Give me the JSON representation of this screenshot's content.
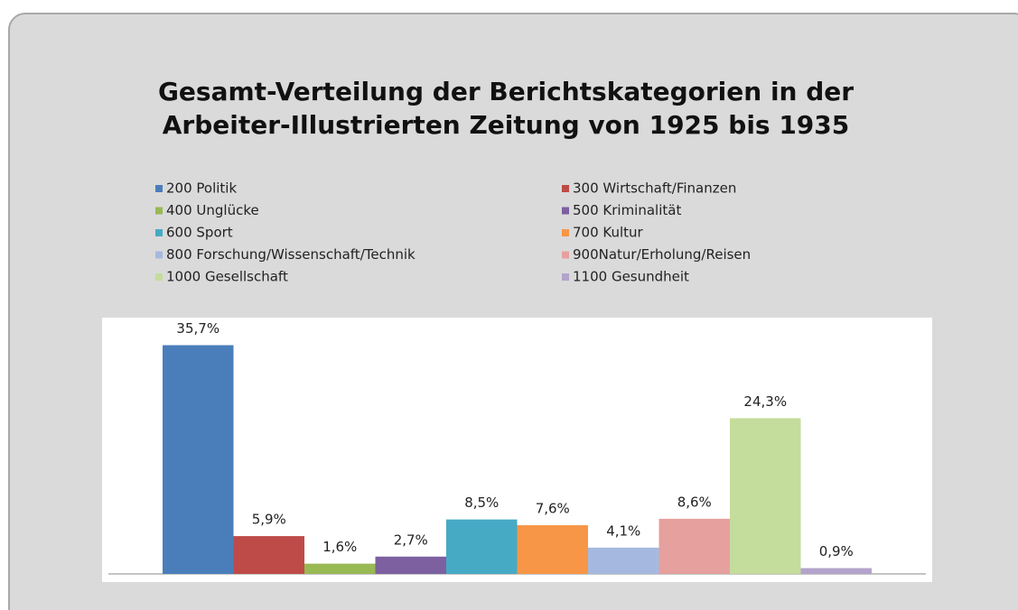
{
  "chart_data": {
    "type": "bar",
    "title": [
      "Gesamt-Verteilung der Berichtskategorien in der",
      "Arbeiter-Illustrierten Zeitung von 1925 bis 1935"
    ],
    "categories": [
      "200 Politik",
      "300 Wirtschaft/Finanzen",
      "400 Unglücke",
      "500 Kriminalität",
      "600 Sport",
      "700 Kultur",
      "800 Forschung/Wissenschaft/Technik",
      "900Natur/Erholung/Reisen",
      "1000 Gesellschaft",
      "1100 Gesundheit"
    ],
    "values": [
      35.7,
      5.9,
      1.6,
      2.7,
      8.5,
      7.6,
      4.1,
      8.6,
      24.3,
      0.9
    ],
    "value_labels": [
      "35,7%",
      "5,9%",
      "1,6%",
      "2,7%",
      "8,5%",
      "7,6%",
      "4,1%",
      "8,6%",
      "24,3%",
      "0,9%"
    ],
    "colors": [
      "#4a7ebb",
      "#be4b48",
      "#98b954",
      "#7d60a0",
      "#46aac5",
      "#f79646",
      "#a5b9e0",
      "#e6a09e",
      "#c4dc9c",
      "#b3a3cc"
    ],
    "ylim": [
      0,
      40
    ]
  }
}
